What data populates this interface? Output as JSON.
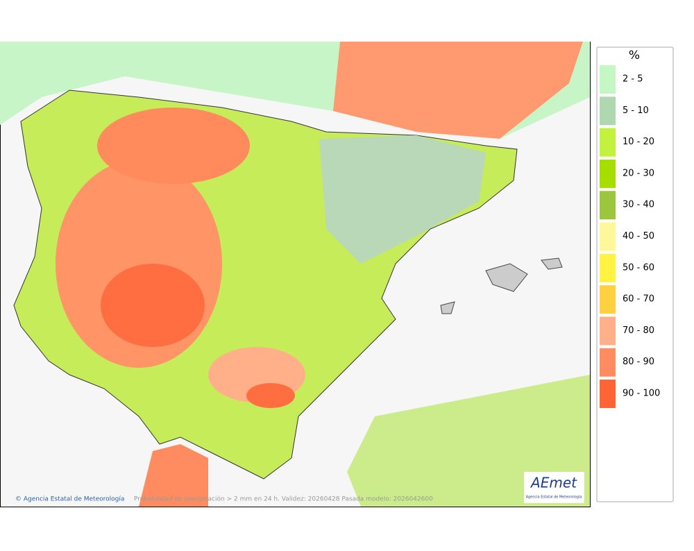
{
  "legend": {
    "title": "%",
    "items": [
      {
        "label": "2 - 5",
        "color": "#c4f7c4"
      },
      {
        "label": "5 - 10",
        "color": "#b0d8b0"
      },
      {
        "label": "10 - 20",
        "color": "#c2f23e"
      },
      {
        "label": "20 - 30",
        "color": "#a6de00"
      },
      {
        "label": "30 - 40",
        "color": "#9cc63e"
      },
      {
        "label": "40 - 50",
        "color": "#fff89a"
      },
      {
        "label": "50 - 60",
        "color": "#fff242"
      },
      {
        "label": "60 - 70",
        "color": "#ffd040"
      },
      {
        "label": "70 - 80",
        "color": "#ffb088"
      },
      {
        "label": "80 - 90",
        "color": "#ff8c60"
      },
      {
        "label": "90 - 100",
        "color": "#ff6434"
      }
    ]
  },
  "footer": {
    "credit": "© Agencia Estatal de Meteorología",
    "caption": "Probabilidad de precipitación > 2 mm en 24 h. Validez: 20260428 Pasada modelo: 2026042600"
  },
  "logo": {
    "text": "AEmet",
    "subtitle": "Agencia Estatal de Meteorología"
  }
}
